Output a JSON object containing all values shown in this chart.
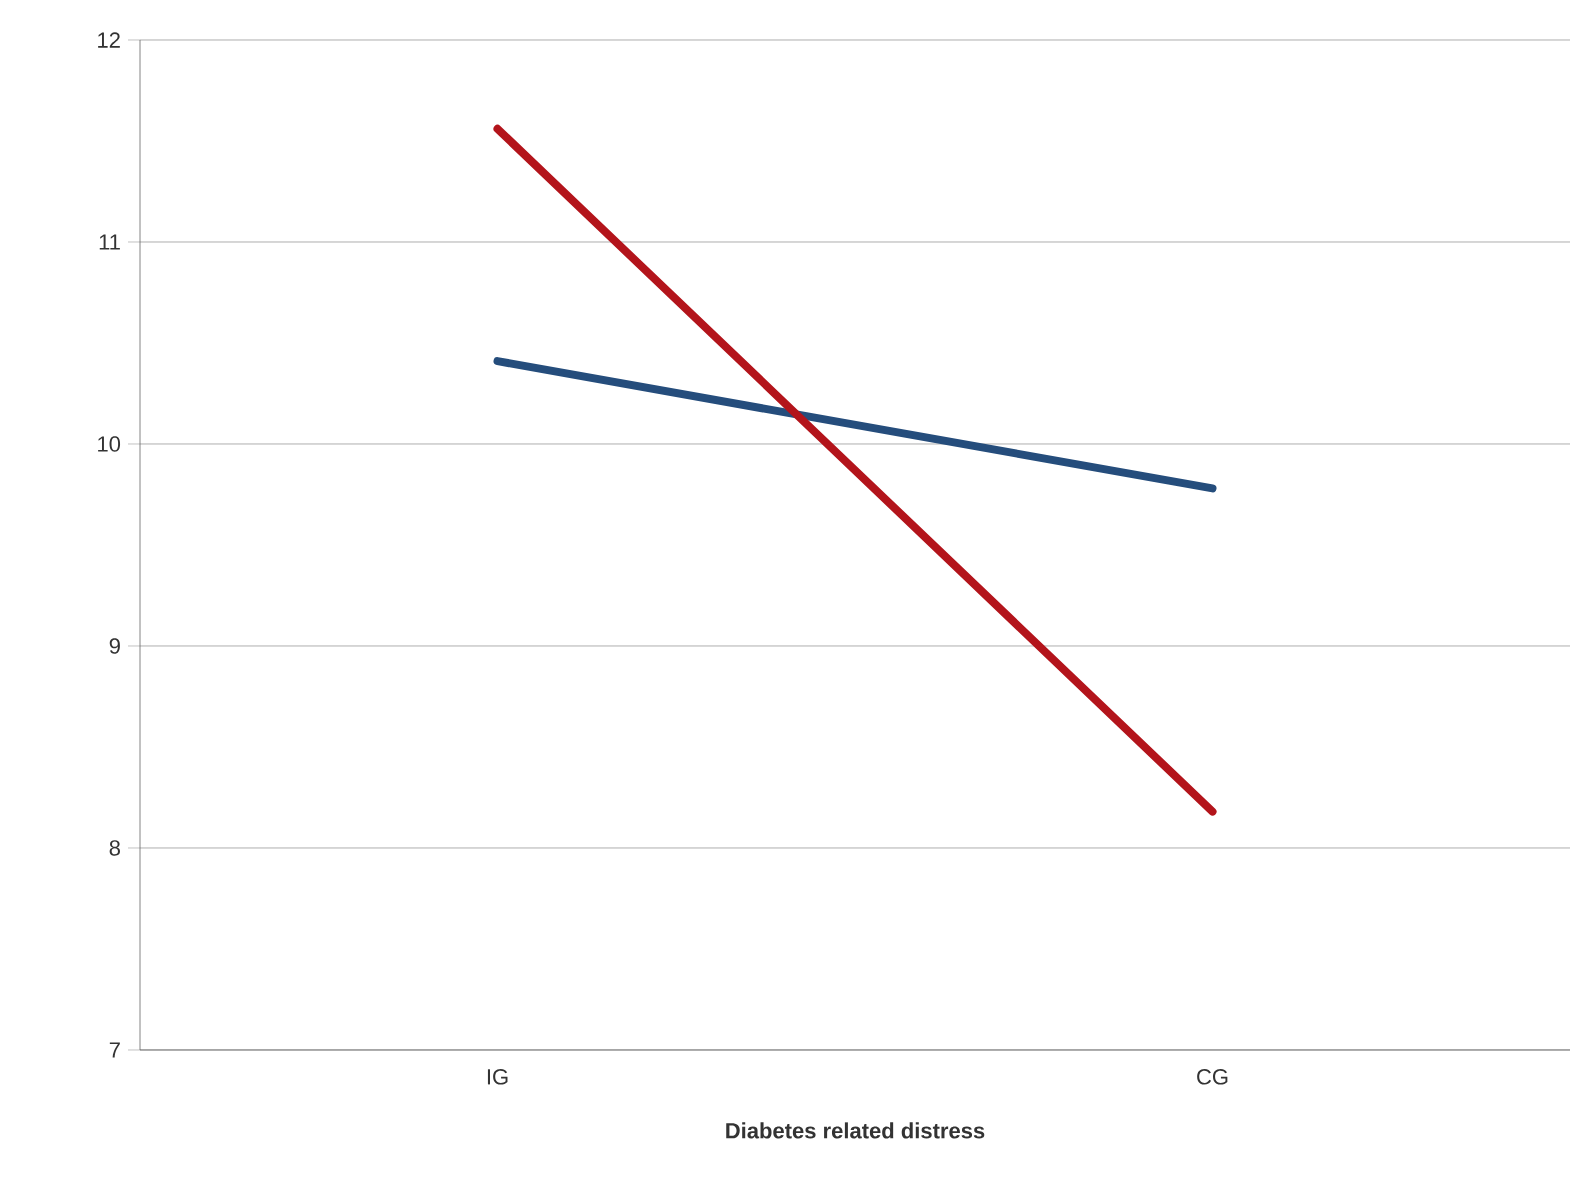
{
  "chart_data": {
    "type": "line",
    "xlabel": "Diabetes related distress",
    "categories": [
      "IG",
      "CG"
    ],
    "series": [
      {
        "color": "#254d7c",
        "values": [
          10.41,
          9.78
        ]
      },
      {
        "color": "#b3141b",
        "values": [
          11.56,
          8.18
        ]
      }
    ],
    "ylim": [
      7,
      12
    ],
    "yticks": [
      7,
      8,
      9,
      10,
      11,
      12
    ],
    "grid": "y",
    "marker": "none",
    "line_style": "solid"
  }
}
